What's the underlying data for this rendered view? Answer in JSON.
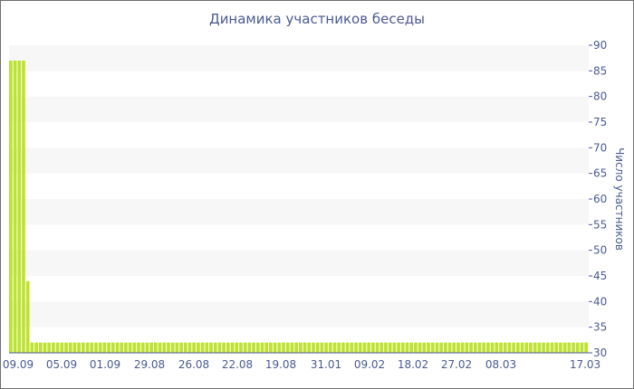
{
  "chart_data": {
    "type": "bar",
    "title": "Динамика участников беседы",
    "xlabel": "",
    "ylabel": "Число участников",
    "ylim": [
      30,
      90
    ],
    "yticks": [
      30,
      35,
      40,
      45,
      50,
      55,
      60,
      65,
      70,
      75,
      80,
      85,
      90
    ],
    "xtick_labels": [
      "09.09",
      "05.09",
      "01.09",
      "29.08",
      "26.08",
      "22.08",
      "19.08",
      "31.01",
      "09.02",
      "18.02",
      "27.02",
      "08.03",
      "17.03"
    ],
    "grid": "alternating horizontal bands",
    "bar_color": "#bde32f",
    "band_color": "#f7f7f7",
    "text_color": "#4b5a91",
    "values": [
      87,
      87,
      87,
      87,
      44,
      32,
      32,
      32,
      32,
      32,
      32,
      32,
      32,
      32,
      32,
      32,
      32,
      32,
      32,
      32,
      32,
      32,
      32,
      32,
      32,
      32,
      32,
      32,
      32,
      32,
      32,
      32,
      32,
      32,
      32,
      32,
      32,
      32,
      32,
      32,
      32,
      32,
      32,
      32,
      32,
      32,
      32,
      32,
      32,
      32,
      32,
      32,
      32,
      32,
      32,
      32,
      32,
      32,
      32,
      32,
      32,
      32,
      32,
      32,
      32,
      32,
      32,
      32,
      32,
      32,
      32,
      32,
      32,
      32,
      32,
      32,
      32,
      32,
      32,
      32,
      32,
      32,
      32,
      32,
      32,
      32,
      32,
      32,
      32,
      32,
      32,
      32,
      32,
      32,
      32,
      32,
      32,
      32,
      32,
      32,
      32,
      32,
      32,
      32,
      32,
      32,
      32,
      32,
      32,
      32,
      32,
      32,
      32,
      32,
      32,
      32,
      32,
      32,
      32,
      32,
      32,
      32,
      32,
      32,
      32,
      32,
      32,
      32,
      32,
      32,
      32,
      32,
      32,
      32,
      32,
      32
    ]
  }
}
